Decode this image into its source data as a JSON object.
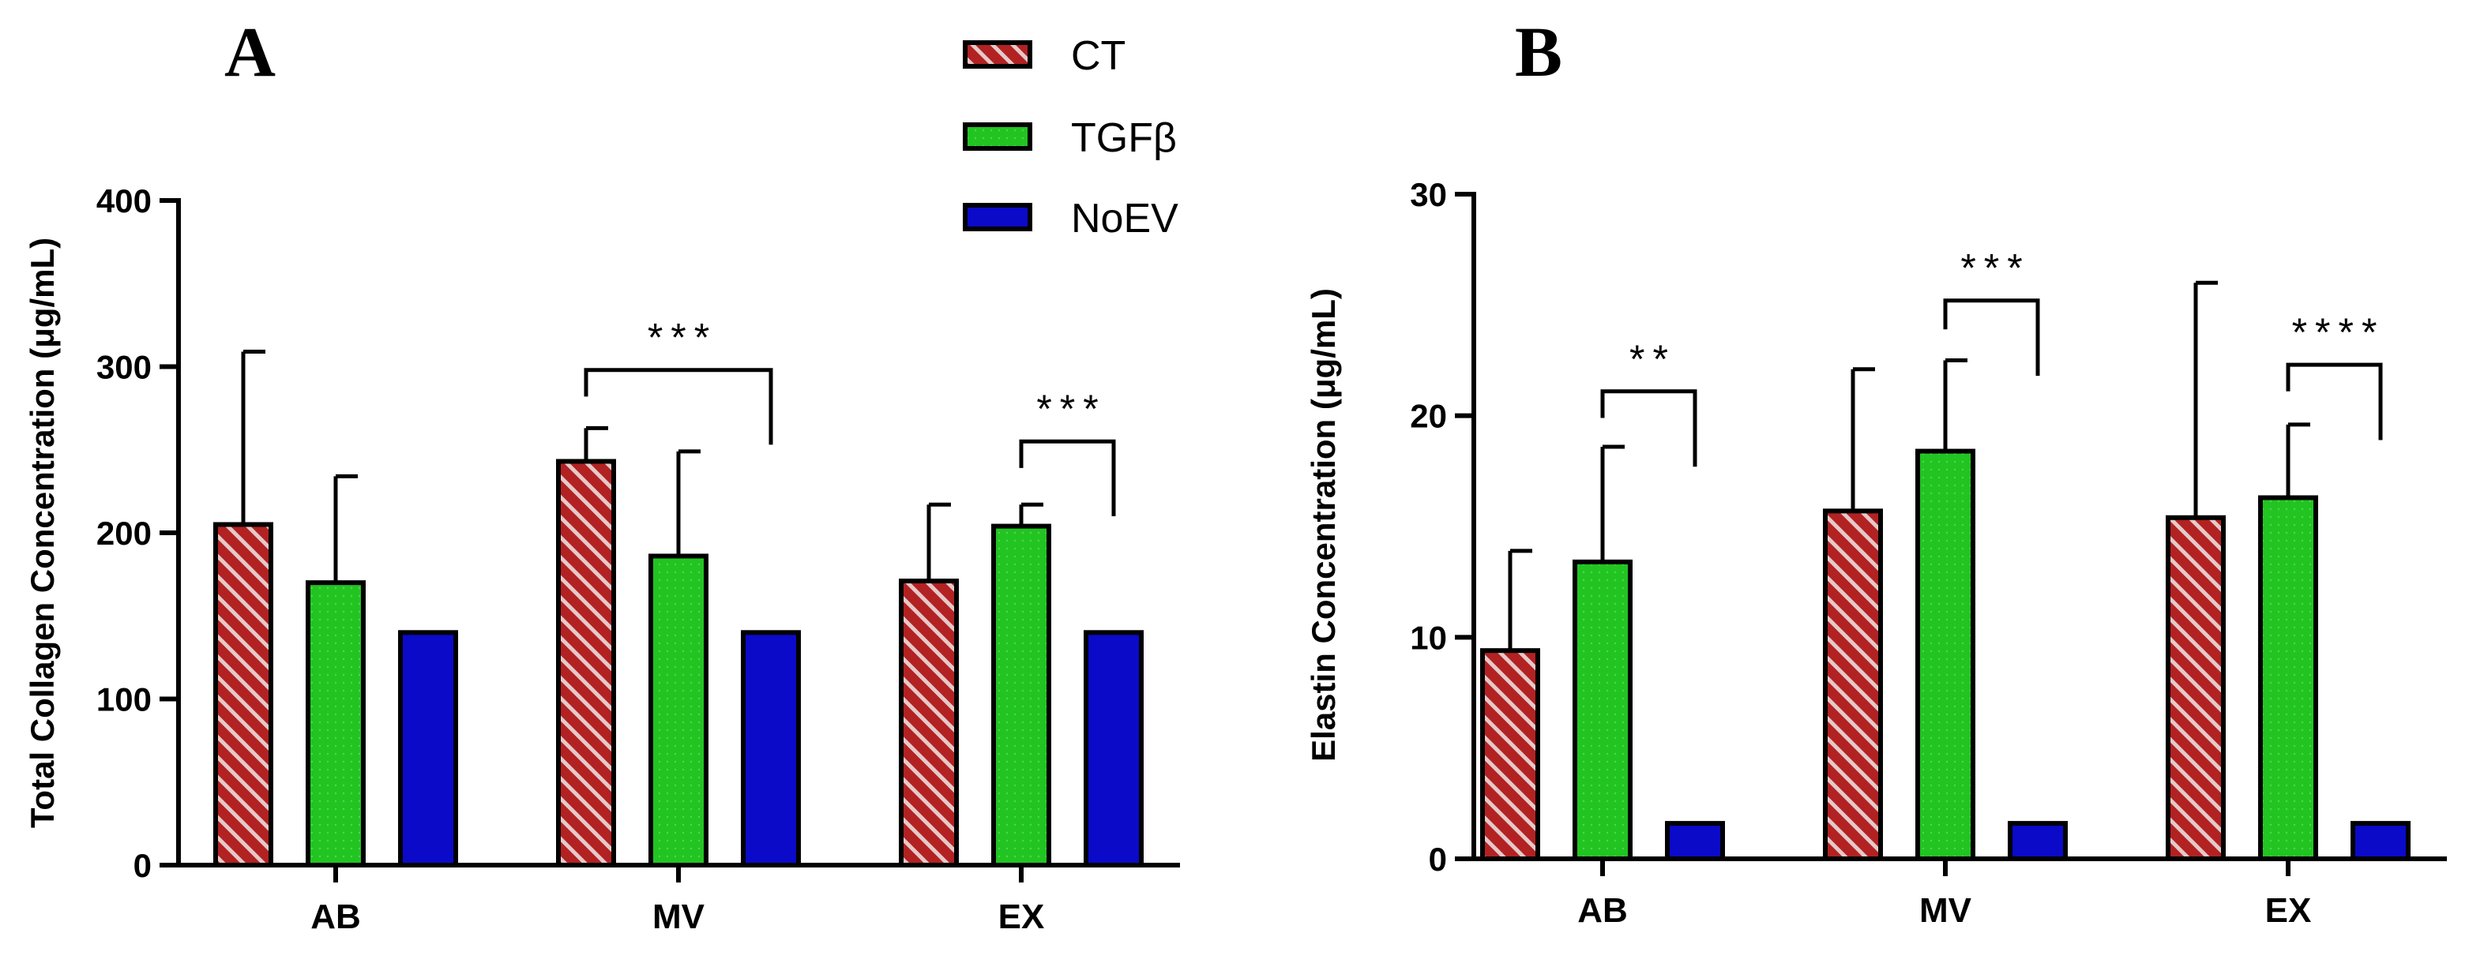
{
  "colors": {
    "CT": "#b22222",
    "CT_stripe": "#e6c9c9",
    "TGFb": "#22c422",
    "NoEV": "#0a0ac8",
    "outline": "#000000"
  },
  "legend": [
    "CT",
    "TGFβ",
    "NoEV"
  ],
  "chart_data": [
    {
      "type": "bar",
      "panel": "A",
      "title": "",
      "ylabel": "Total Collagen Concentration (μg/mL)",
      "xlabel": "",
      "ylim": [
        0,
        400
      ],
      "yticks": [
        0,
        100,
        200,
        300,
        400
      ],
      "categories": [
        "AB",
        "MV",
        "EX"
      ],
      "series": [
        {
          "name": "CT",
          "values": [
            205,
            243,
            171
          ],
          "errors": [
            309,
            263,
            217
          ]
        },
        {
          "name": "TGFβ",
          "values": [
            170,
            186,
            204
          ],
          "errors": [
            234,
            249,
            217
          ]
        },
        {
          "name": "NoEV",
          "values": [
            140,
            140,
            140
          ],
          "errors": [
            null,
            null,
            null
          ]
        }
      ],
      "significance": [
        {
          "category": "MV",
          "from": "CT",
          "to": "NoEV",
          "label": "***",
          "y": 298,
          "drop_left": 282,
          "drop_right": 253
        },
        {
          "category": "EX",
          "from": "TGFβ",
          "to": "NoEV",
          "label": "***",
          "y": 255,
          "drop_left": 239,
          "drop_right": 210
        }
      ]
    },
    {
      "type": "bar",
      "panel": "B",
      "title": "",
      "ylabel": "Elastin Concentration (μg/mL)",
      "xlabel": "",
      "ylim": [
        0,
        30
      ],
      "yticks": [
        0,
        10,
        20,
        30
      ],
      "categories": [
        "AB",
        "MV",
        "EX"
      ],
      "series": [
        {
          "name": "CT",
          "values": [
            9.4,
            15.7,
            15.4
          ],
          "errors": [
            13.9,
            22.1,
            26.0
          ]
        },
        {
          "name": "TGFβ",
          "values": [
            13.4,
            18.4,
            16.3
          ],
          "errors": [
            18.6,
            22.5,
            19.6
          ]
        },
        {
          "name": "NoEV",
          "values": [
            1.6,
            1.6,
            1.6
          ],
          "errors": [
            null,
            null,
            null
          ]
        }
      ],
      "significance": [
        {
          "category": "AB",
          "from": "TGFβ",
          "to": "NoEV",
          "label": "**",
          "y": 21.1,
          "drop_left": 19.9,
          "drop_right": 17.7
        },
        {
          "category": "MV",
          "from": "TGFβ",
          "to": "NoEV",
          "label": "***",
          "y": 25.2,
          "drop_left": 23.9,
          "drop_right": 21.8
        },
        {
          "category": "EX",
          "from": "TGFβ",
          "to": "NoEV",
          "label": "****",
          "y": 22.3,
          "drop_left": 21.1,
          "drop_right": 18.9
        }
      ]
    }
  ]
}
